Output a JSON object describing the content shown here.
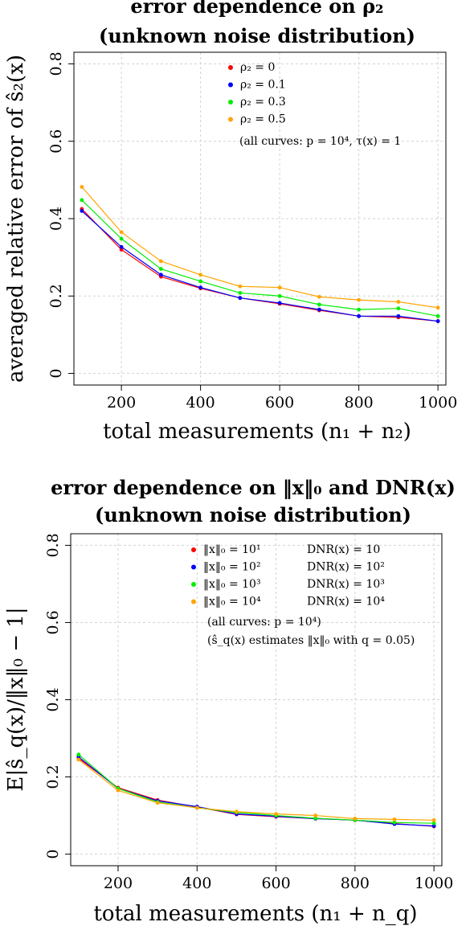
{
  "chart_data": [
    {
      "type": "line",
      "title_line1": "error dependence on ρ₂",
      "title_line2": "(unknown noise distribution)",
      "xlabel": "total measurements (n₁ + n₂)",
      "ylabel": "averaged relative error of ŝ₂(x)",
      "xlim": [
        80,
        1020
      ],
      "ylim": [
        -0.03,
        0.83
      ],
      "xticks": [
        200,
        400,
        600,
        800,
        1000
      ],
      "yticks": [
        0,
        0.2,
        0.4,
        0.6,
        0.8
      ],
      "xtick_labels": [
        "200",
        "400",
        "600",
        "800",
        "1000"
      ],
      "ytick_labels": [
        "0",
        "0.2",
        "0.4",
        "0.6",
        "0.8"
      ],
      "grid": true,
      "legend_position": "top-right",
      "x": [
        100,
        200,
        300,
        400,
        500,
        600,
        700,
        800,
        900,
        1000
      ],
      "series": [
        {
          "name": "ρ₂ = 0",
          "color": "#ff0000",
          "values": [
            0.425,
            0.32,
            0.25,
            0.22,
            0.195,
            0.18,
            0.163,
            0.148,
            0.145,
            0.135
          ]
        },
        {
          "name": "ρ₂ = 0.1",
          "color": "#0000ff",
          "values": [
            0.42,
            0.327,
            0.255,
            0.222,
            0.195,
            0.182,
            0.165,
            0.148,
            0.148,
            0.135
          ]
        },
        {
          "name": "ρ₂ = 0.3",
          "color": "#00ee00",
          "values": [
            0.448,
            0.348,
            0.27,
            0.238,
            0.208,
            0.2,
            0.178,
            0.165,
            0.168,
            0.148
          ]
        },
        {
          "name": "ρ₂ = 0.5",
          "color": "#ffa500",
          "values": [
            0.482,
            0.365,
            0.29,
            0.255,
            0.225,
            0.222,
            0.198,
            0.19,
            0.185,
            0.17
          ]
        }
      ],
      "note": "(all curves: p = 10⁴, τ(x) = 1"
    },
    {
      "type": "line",
      "title_line1": "error dependence on ‖x‖₀ and DNR(x)",
      "title_line2": "(unknown noise distribution)",
      "xlabel": "total measurements (n₁ + n_q)",
      "ylabel": "E|ŝ_q(x)/‖x‖₀ − 1|",
      "xlim": [
        80,
        1020
      ],
      "ylim": [
        -0.03,
        0.83
      ],
      "xticks": [
        200,
        400,
        600,
        800,
        1000
      ],
      "yticks": [
        0,
        0.2,
        0.4,
        0.6,
        0.8
      ],
      "xtick_labels": [
        "200",
        "400",
        "600",
        "800",
        "1000"
      ],
      "ytick_labels": [
        "0",
        "0.2",
        "0.4",
        "0.6",
        "0.8"
      ],
      "grid": true,
      "legend_position": "top-right",
      "x": [
        100,
        200,
        300,
        400,
        500,
        600,
        700,
        800,
        900,
        1000
      ],
      "series": [
        {
          "name": "‖x‖₀ = 10¹",
          "name2": "DNR(x) = 10",
          "color": "#ff0000",
          "values": [
            0.248,
            0.172,
            0.14,
            0.122,
            0.103,
            0.097,
            0.092,
            0.088,
            0.079,
            0.072
          ]
        },
        {
          "name": "‖x‖₀ = 10²",
          "name2": "DNR(x) = 10²",
          "color": "#0000ff",
          "values": [
            0.252,
            0.17,
            0.138,
            0.123,
            0.104,
            0.098,
            0.092,
            0.088,
            0.078,
            0.073
          ]
        },
        {
          "name": "‖x‖₀ = 10³",
          "name2": "DNR(x) = 10³",
          "color": "#00ee00",
          "values": [
            0.258,
            0.17,
            0.135,
            0.12,
            0.108,
            0.1,
            0.093,
            0.088,
            0.082,
            0.08
          ]
        },
        {
          "name": "‖x‖₀ = 10⁴",
          "name2": "DNR(x) = 10⁴",
          "color": "#ffa500",
          "values": [
            0.245,
            0.165,
            0.133,
            0.12,
            0.11,
            0.104,
            0.1,
            0.092,
            0.09,
            0.088
          ]
        }
      ],
      "note": "(all curves: p = 10⁴)",
      "note2": "(ŝ_q(x) estimates ‖x‖₀ with q = 0.05)"
    }
  ]
}
